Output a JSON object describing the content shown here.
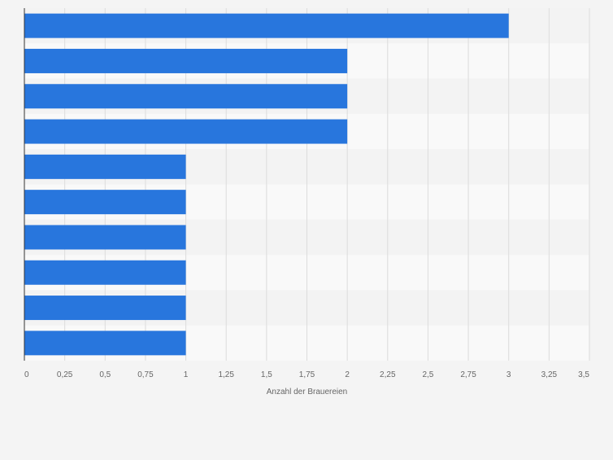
{
  "chart_data": {
    "type": "bar",
    "orientation": "horizontal",
    "categories": [
      "",
      "",
      "",
      "",
      "",
      "",
      "",
      "",
      "",
      ""
    ],
    "values": [
      3,
      2,
      2,
      2,
      1,
      1,
      1,
      1,
      1,
      1
    ],
    "title": "",
    "xlabel": "Anzahl der Brauereien",
    "ylabel": "",
    "xlim": [
      0,
      3.5
    ],
    "xticks": [
      0,
      0.25,
      0.5,
      0.75,
      1,
      1.25,
      1.5,
      1.75,
      2,
      2.25,
      2.5,
      2.75,
      3,
      3.25,
      3.5
    ],
    "xtick_labels": [
      "0",
      "0,25",
      "0,5",
      "0,75",
      "1",
      "1,25",
      "1,5",
      "1,75",
      "2",
      "2,25",
      "2,5",
      "2,75",
      "3",
      "3,25",
      "3,5"
    ],
    "grid": true,
    "colors": {
      "bar": "#2876dd",
      "background": "#f4f4f4",
      "band_light": "#f9f9f9",
      "band_dark": "#f3f3f3",
      "grid": "#dcdcdc",
      "axis": "#333333",
      "tick_text": "#666666"
    }
  }
}
